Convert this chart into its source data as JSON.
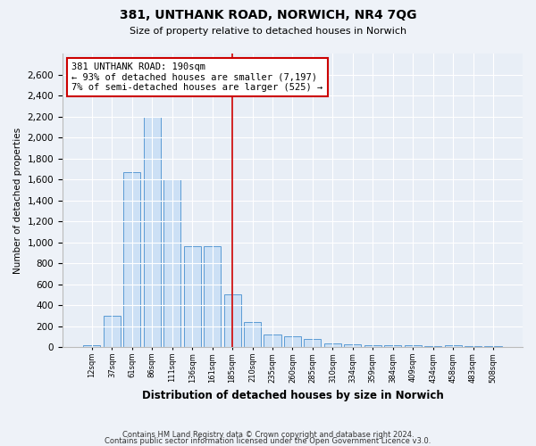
{
  "title1": "381, UNTHANK ROAD, NORWICH, NR4 7QG",
  "title2": "Size of property relative to detached houses in Norwich",
  "xlabel": "Distribution of detached houses by size in Norwich",
  "ylabel": "Number of detached properties",
  "categories": [
    "12sqm",
    "37sqm",
    "61sqm",
    "86sqm",
    "111sqm",
    "136sqm",
    "161sqm",
    "185sqm",
    "210sqm",
    "235sqm",
    "260sqm",
    "285sqm",
    "310sqm",
    "334sqm",
    "359sqm",
    "384sqm",
    "409sqm",
    "434sqm",
    "458sqm",
    "483sqm",
    "508sqm"
  ],
  "values": [
    20,
    300,
    1670,
    2200,
    1600,
    960,
    960,
    500,
    240,
    120,
    100,
    80,
    40,
    25,
    20,
    15,
    15,
    10,
    15,
    10,
    10
  ],
  "bar_color": "#cce0f5",
  "bar_edge_color": "#5b9bd5",
  "highlight_index": 7,
  "highlight_line_color": "#cc0000",
  "annotation_box_color": "#ffffff",
  "annotation_box_edge": "#cc0000",
  "annotation_text": "381 UNTHANK ROAD: 190sqm\n← 93% of detached houses are smaller (7,197)\n7% of semi-detached houses are larger (525) →",
  "ylim": [
    0,
    2800
  ],
  "yticks": [
    0,
    200,
    400,
    600,
    800,
    1000,
    1200,
    1400,
    1600,
    1800,
    2000,
    2200,
    2400,
    2600
  ],
  "footer1": "Contains HM Land Registry data © Crown copyright and database right 2024.",
  "footer2": "Contains public sector information licensed under the Open Government Licence v3.0.",
  "bg_color": "#eef2f8",
  "plot_bg_color": "#e8eef6"
}
